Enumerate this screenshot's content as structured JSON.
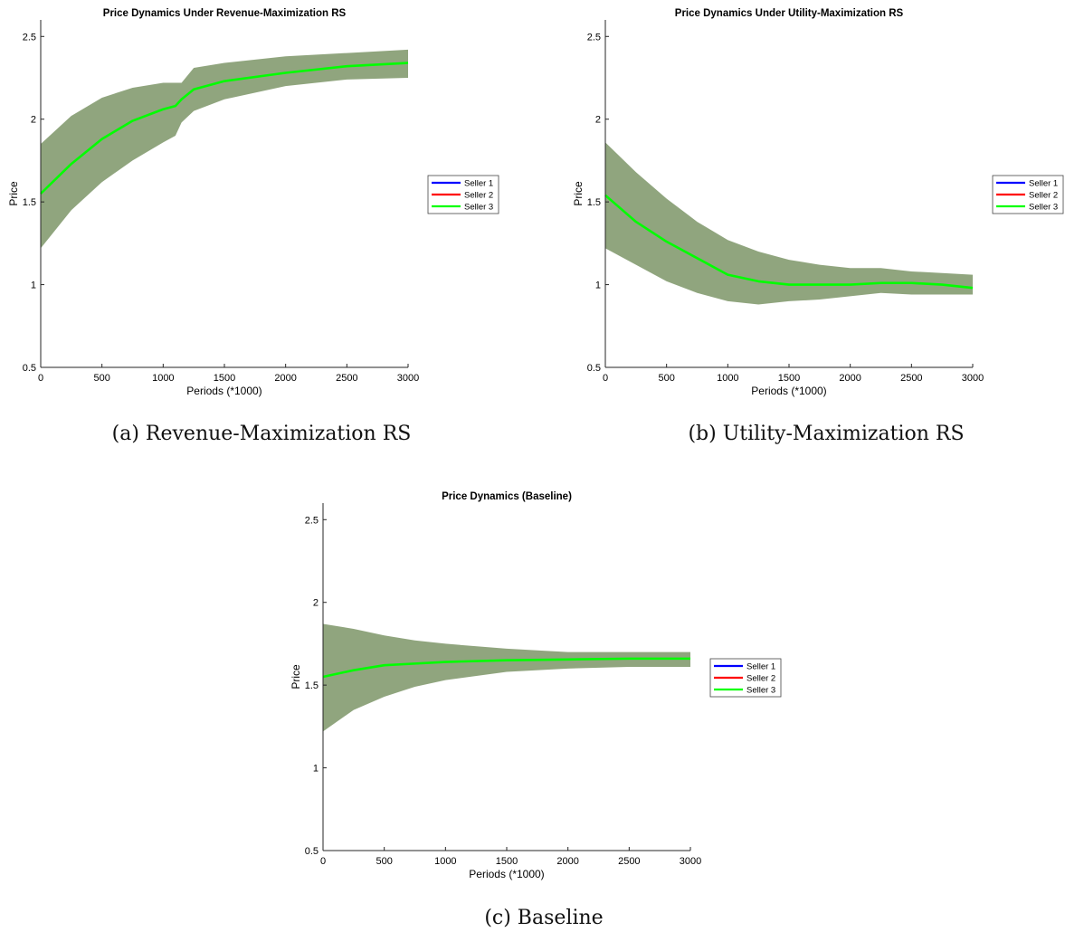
{
  "charts": {
    "chart_data": [
      {
        "type": "line",
        "title": "Price Dynamics Under Revenue-Maximization RS",
        "caption": "(a) Revenue-Maximization RS",
        "xlabel": "Periods (*1000)",
        "ylabel": "Price",
        "xlim": [
          0,
          3000
        ],
        "ylim": [
          0.5,
          2.6
        ],
        "xticks": [
          0,
          500,
          1000,
          1500,
          2000,
          2500,
          3000
        ],
        "xtick_labels": [
          "0",
          "500",
          "1000",
          "1500",
          "2000",
          "2500",
          "3000"
        ],
        "yticks": [
          0.5,
          1,
          1.5,
          2,
          2.5
        ],
        "ytick_labels": [
          "0.5",
          "1",
          "1.5",
          "2",
          "2.5"
        ],
        "grid": false,
        "legend_position": "outside-right",
        "x": [
          0,
          250,
          500,
          750,
          1000,
          1100,
          1150,
          1250,
          1500,
          2000,
          2500,
          3000
        ],
        "band": {
          "upper": [
            1.85,
            2.02,
            2.13,
            2.19,
            2.22,
            2.22,
            2.22,
            2.31,
            2.34,
            2.38,
            2.4,
            2.42
          ],
          "lower": [
            1.22,
            1.45,
            1.62,
            1.75,
            1.86,
            1.9,
            1.98,
            2.05,
            2.12,
            2.2,
            2.24,
            2.25
          ]
        },
        "series": [
          {
            "name": "Seller 1",
            "color": "#0000ff",
            "values": [
              1.55,
              1.73,
              1.88,
              1.99,
              2.06,
              2.08,
              2.12,
              2.18,
              2.23,
              2.28,
              2.32,
              2.34
            ]
          },
          {
            "name": "Seller 2",
            "color": "#ff0000",
            "values": [
              1.55,
              1.73,
              1.88,
              1.99,
              2.06,
              2.08,
              2.12,
              2.18,
              2.23,
              2.28,
              2.32,
              2.34
            ]
          },
          {
            "name": "Seller 3",
            "color": "#00ff00",
            "values": [
              1.55,
              1.73,
              1.88,
              1.99,
              2.06,
              2.08,
              2.12,
              2.18,
              2.23,
              2.28,
              2.32,
              2.34
            ]
          }
        ]
      },
      {
        "type": "line",
        "title": "Price Dynamics Under Utility-Maximization RS",
        "caption": "(b) Utility-Maximization RS",
        "xlabel": "Periods (*1000)",
        "ylabel": "Price",
        "xlim": [
          0,
          3000
        ],
        "ylim": [
          0.5,
          2.6
        ],
        "xticks": [
          0,
          500,
          1000,
          1500,
          2000,
          2500,
          3000
        ],
        "xtick_labels": [
          "0",
          "500",
          "1000",
          "1500",
          "2000",
          "2500",
          "3000"
        ],
        "yticks": [
          0.5,
          1,
          1.5,
          2,
          2.5
        ],
        "ytick_labels": [
          "0.5",
          "1",
          "1.5",
          "2",
          "2.5"
        ],
        "grid": false,
        "legend_position": "outside-right",
        "x": [
          0,
          250,
          500,
          750,
          1000,
          1250,
          1500,
          1750,
          2000,
          2250,
          2500,
          2750,
          3000
        ],
        "band": {
          "upper": [
            1.86,
            1.68,
            1.52,
            1.38,
            1.27,
            1.2,
            1.15,
            1.12,
            1.1,
            1.1,
            1.08,
            1.07,
            1.06
          ],
          "lower": [
            1.22,
            1.12,
            1.02,
            0.95,
            0.9,
            0.88,
            0.9,
            0.91,
            0.93,
            0.95,
            0.94,
            0.94,
            0.94
          ]
        },
        "series": [
          {
            "name": "Seller 1",
            "color": "#0000ff",
            "values": [
              1.54,
              1.38,
              1.26,
              1.16,
              1.06,
              1.02,
              1.0,
              1.0,
              1.0,
              1.01,
              1.01,
              1.0,
              0.98
            ]
          },
          {
            "name": "Seller 2",
            "color": "#ff0000",
            "values": [
              1.54,
              1.38,
              1.26,
              1.16,
              1.06,
              1.02,
              1.0,
              1.0,
              1.0,
              1.01,
              1.01,
              1.0,
              0.98
            ]
          },
          {
            "name": "Seller 3",
            "color": "#00ff00",
            "values": [
              1.54,
              1.38,
              1.26,
              1.16,
              1.06,
              1.02,
              1.0,
              1.0,
              1.0,
              1.01,
              1.01,
              1.0,
              0.98
            ]
          }
        ]
      },
      {
        "type": "line",
        "title": "Price Dynamics (Baseline)",
        "caption": "(c) Baseline",
        "xlabel": "Periods (*1000)",
        "ylabel": "Price",
        "xlim": [
          0,
          3000
        ],
        "ylim": [
          0.5,
          2.6
        ],
        "xticks": [
          0,
          500,
          1000,
          1500,
          2000,
          2500,
          3000
        ],
        "xtick_labels": [
          "0",
          "500",
          "1000",
          "1500",
          "2000",
          "2500",
          "3000"
        ],
        "yticks": [
          0.5,
          1,
          1.5,
          2,
          2.5
        ],
        "ytick_labels": [
          "0.5",
          "1",
          "1.5",
          "2",
          "2.5"
        ],
        "grid": false,
        "legend_position": "outside-right",
        "x": [
          0,
          250,
          500,
          750,
          1000,
          1500,
          2000,
          2500,
          3000
        ],
        "band": {
          "upper": [
            1.87,
            1.84,
            1.8,
            1.77,
            1.75,
            1.72,
            1.7,
            1.7,
            1.7
          ],
          "lower": [
            1.22,
            1.35,
            1.43,
            1.49,
            1.53,
            1.58,
            1.6,
            1.61,
            1.61
          ]
        },
        "series": [
          {
            "name": "Seller 1",
            "color": "#0000ff",
            "values": [
              1.55,
              1.59,
              1.62,
              1.63,
              1.64,
              1.65,
              1.655,
              1.66,
              1.66
            ]
          },
          {
            "name": "Seller 2",
            "color": "#ff0000",
            "values": [
              1.55,
              1.59,
              1.62,
              1.63,
              1.64,
              1.65,
              1.655,
              1.66,
              1.66
            ]
          },
          {
            "name": "Seller 3",
            "color": "#00ff00",
            "values": [
              1.55,
              1.59,
              1.62,
              1.63,
              1.64,
              1.65,
              1.655,
              1.66,
              1.66
            ]
          }
        ]
      }
    ]
  },
  "colors": {
    "band": "#8aa077",
    "axis": "#262626",
    "text": "#000000"
  }
}
